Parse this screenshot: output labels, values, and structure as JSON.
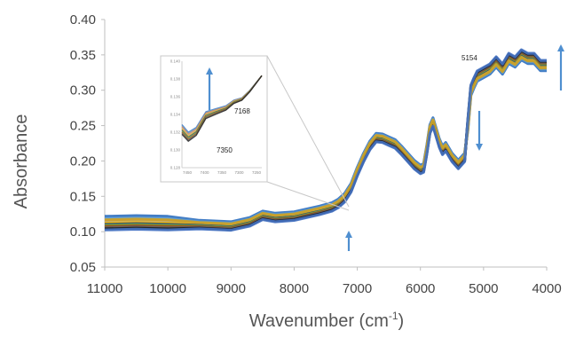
{
  "chart_data": {
    "type": "line",
    "title": "",
    "xlabel": "Wavenumber (cm",
    "xlabel_superscript": "-1",
    "xlabel_suffix": ")",
    "ylabel": "Absorbance",
    "xlim": [
      11000,
      4000
    ],
    "ylim": [
      0.05,
      0.4
    ],
    "x_reversed": true,
    "grid": false,
    "x_ticks": [
      "11000",
      "10000",
      "9000",
      "8000",
      "7000",
      "6000",
      "5000",
      "4000"
    ],
    "y_ticks": [
      "0.40",
      "0.35",
      "0.30",
      "0.25",
      "0.20",
      "0.15",
      "0.10",
      "0.05"
    ],
    "colors": [
      "#2e6fbf",
      "#5b9bd5",
      "#ed7d31",
      "#a5a5a5",
      "#ffc000",
      "#264478",
      "#70ad47",
      "#9e480e",
      "#636363",
      "#1f1f1f",
      "#c9a227",
      "#4472c4"
    ],
    "series_base": {
      "x": [
        11000,
        10500,
        10000,
        9500,
        9000,
        8700,
        8500,
        8300,
        8000,
        7600,
        7400,
        7300,
        7200,
        7100,
        7000,
        6900,
        6800,
        6700,
        6600,
        6500,
        6400,
        6300,
        6200,
        6100,
        6000,
        5950,
        5900,
        5850,
        5800,
        5750,
        5700,
        5650,
        5600,
        5500,
        5400,
        5300,
        5250,
        5200,
        5154,
        5100,
        5000,
        4900,
        4800,
        4700,
        4600,
        4500,
        4400,
        4300,
        4200,
        4100,
        4000
      ],
      "y": [
        0.112,
        0.113,
        0.112,
        0.11,
        0.108,
        0.114,
        0.123,
        0.12,
        0.122,
        0.13,
        0.135,
        0.14,
        0.148,
        0.162,
        0.185,
        0.205,
        0.222,
        0.233,
        0.232,
        0.228,
        0.224,
        0.215,
        0.205,
        0.195,
        0.188,
        0.19,
        0.215,
        0.245,
        0.255,
        0.24,
        0.225,
        0.215,
        0.22,
        0.205,
        0.195,
        0.205,
        0.25,
        0.3,
        0.31,
        0.32,
        0.325,
        0.33,
        0.34,
        0.33,
        0.345,
        0.34,
        0.35,
        0.345,
        0.345,
        0.335,
        0.335
      ]
    },
    "annotations": [
      {
        "text": "5154",
        "x": 5154
      },
      {
        "text": "7168",
        "x": 7168
      },
      {
        "text": "7350",
        "x": 7350
      }
    ],
    "inset": {
      "y_ticks": [
        "0.140",
        "0.138",
        "0.136",
        "0.134",
        "0.132",
        "0.130",
        "0.128"
      ],
      "x_ticks": [
        "7450",
        "7400",
        "7350",
        "7300",
        "7250"
      ]
    }
  }
}
